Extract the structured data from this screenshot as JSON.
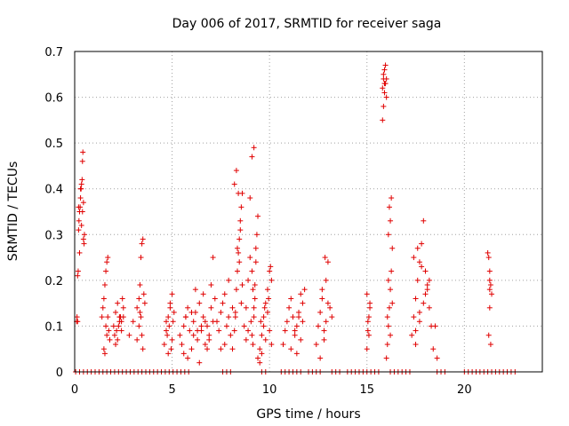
{
  "chart_data": {
    "type": "scatter",
    "title": "Day 006 of 2017, SRMTID for receiver saga",
    "xlabel": "GPS time / hours",
    "ylabel": "SRMTID / TECUs",
    "xlim": [
      0,
      24
    ],
    "ylim": [
      0,
      0.7
    ],
    "xticks": [
      0,
      5,
      10,
      15,
      20
    ],
    "xtick_labels": [
      "0",
      "5",
      "10",
      "15",
      "20"
    ],
    "yticks": [
      0,
      0.1,
      0.2,
      0.3,
      0.4,
      0.5,
      0.6,
      0.7
    ],
    "ytick_labels": [
      "0",
      "0.1",
      "0.2",
      "0.3",
      "0.4",
      "0.5",
      "0.6",
      "0.7"
    ],
    "grid": true,
    "marker": "plus",
    "color": "#e00000",
    "series": [
      {
        "name": "",
        "x": [
          0.1,
          0.12,
          0.15,
          0.18,
          0.2,
          0.22,
          0.25,
          0.28,
          0.3,
          0.33,
          0.35,
          0.38,
          0.4,
          0.42,
          0.45,
          0.48,
          0.5,
          0.2,
          0.3,
          0.35,
          0.25,
          0.15,
          0.4,
          0.45,
          1.4,
          1.45,
          1.5,
          1.55,
          1.6,
          1.65,
          1.7,
          1.75,
          1.8,
          1.5,
          1.6,
          1.7,
          1.55,
          1.65,
          2.0,
          2.1,
          2.2,
          2.3,
          2.4,
          2.5,
          2.05,
          2.15,
          2.25,
          2.35,
          2.45,
          2.2,
          2.3,
          2.1,
          2.4,
          2.5,
          2.8,
          3.0,
          3.2,
          3.3,
          3.35,
          3.4,
          3.45,
          3.5,
          3.55,
          3.4,
          3.45,
          3.5,
          3.3,
          3.35,
          3.6,
          3.2,
          4.6,
          4.7,
          4.8,
          4.9,
          5.0,
          5.1,
          4.75,
          4.85,
          4.95,
          5.05,
          4.8,
          4.9,
          5.0,
          4.7,
          5.4,
          5.5,
          5.6,
          5.7,
          5.8,
          5.9,
          6.0,
          6.1,
          6.2,
          6.3,
          6.4,
          6.5,
          6.6,
          6.7,
          6.8,
          6.9,
          7.0,
          7.1,
          7.2,
          5.6,
          5.8,
          6.0,
          6.2,
          6.4,
          6.6,
          6.8,
          7.0,
          5.7,
          6.1,
          6.5,
          6.9,
          7.3,
          7.4,
          7.5,
          7.6,
          7.7,
          7.8,
          7.9,
          8.0,
          8.1,
          7.5,
          7.7,
          7.9,
          6.3,
          6.7,
          7.1,
          8.1,
          8.2,
          8.25,
          8.3,
          8.35,
          8.4,
          8.45,
          8.5,
          8.55,
          8.6,
          8.2,
          8.3,
          8.4,
          8.5,
          8.35,
          8.45,
          8.25,
          8.55,
          8.6,
          8.7,
          8.8,
          8.9,
          9.0,
          9.1,
          9.15,
          9.2,
          9.25,
          9.3,
          9.35,
          9.4,
          9.0,
          9.1,
          9.2,
          9.3,
          9.1,
          9.05,
          9.15,
          9.2,
          9.25,
          8.8,
          8.9,
          9.4,
          9.5,
          9.6,
          9.7,
          9.8,
          9.9,
          10.0,
          10.1,
          9.5,
          9.6,
          9.7,
          9.8,
          9.9,
          10.0,
          10.1,
          10.05,
          9.55,
          9.75,
          9.95,
          10.7,
          10.8,
          10.9,
          11.0,
          11.1,
          11.2,
          11.3,
          11.4,
          11.5,
          11.6,
          11.7,
          11.8,
          11.1,
          11.3,
          11.5,
          11.7,
          11.4,
          11.6,
          12.4,
          12.5,
          12.6,
          12.7,
          12.8,
          12.9,
          13.0,
          13.1,
          13.2,
          12.6,
          12.8,
          12.9,
          13.0,
          12.7,
          12.85,
          15.0,
          15.05,
          15.1,
          15.15,
          15.0,
          15.1,
          15.05,
          15.15,
          15.8,
          15.85,
          15.9,
          15.95,
          16.0,
          15.85,
          15.9,
          15.95,
          15.8,
          16.0,
          15.9,
          15.85,
          16.0,
          16.05,
          16.1,
          16.15,
          16.2,
          16.25,
          16.3,
          16.1,
          16.2,
          16.15,
          16.25,
          16.05,
          16.2,
          16.3,
          16.1,
          17.3,
          17.4,
          17.5,
          17.6,
          17.7,
          17.8,
          17.9,
          18.0,
          18.1,
          18.2,
          18.3,
          17.5,
          17.7,
          17.9,
          18.1,
          17.4,
          17.6,
          17.8,
          18.0,
          17.5,
          17.7,
          18.2,
          18.4,
          18.6,
          18.5,
          21.2,
          21.25,
          21.3,
          21.35,
          21.4,
          21.3,
          21.25,
          21.35,
          21.3,
          21.3,
          0.05,
          0.25,
          0.45,
          0.65,
          0.85,
          1.05,
          1.25,
          1.45,
          1.65,
          1.85,
          2.05,
          2.25,
          2.45,
          2.65,
          2.85,
          3.05,
          3.25,
          3.45,
          3.65,
          3.85,
          4.05,
          4.25,
          4.45,
          4.65,
          4.85,
          5.05,
          5.25,
          5.45,
          5.65,
          5.85,
          7.6,
          7.8,
          8.0,
          9.6,
          9.8,
          10.6,
          10.8,
          11.0,
          11.2,
          11.4,
          11.6,
          12.0,
          12.2,
          12.4,
          12.6,
          13.2,
          13.4,
          13.6,
          14.0,
          14.2,
          14.4,
          14.6,
          14.8,
          15.0,
          15.2,
          15.4,
          15.6,
          16.2,
          16.4,
          16.6,
          16.8,
          17.0,
          17.2,
          18.6,
          18.8,
          19.0,
          20.0,
          20.2,
          20.4,
          20.6,
          20.8,
          21.0,
          21.2,
          21.4,
          21.6,
          21.8,
          22.0,
          22.2,
          22.4,
          22.6
        ],
        "y": [
          0.11,
          0.12,
          0.21,
          0.22,
          0.31,
          0.33,
          0.35,
          0.36,
          0.38,
          0.4,
          0.41,
          0.42,
          0.46,
          0.48,
          0.29,
          0.28,
          0.3,
          0.36,
          0.4,
          0.32,
          0.26,
          0.11,
          0.35,
          0.37,
          0.12,
          0.14,
          0.16,
          0.19,
          0.22,
          0.24,
          0.25,
          0.09,
          0.07,
          0.05,
          0.1,
          0.12,
          0.04,
          0.08,
          0.1,
          0.13,
          0.15,
          0.12,
          0.11,
          0.14,
          0.08,
          0.09,
          0.1,
          0.12,
          0.16,
          0.07,
          0.11,
          0.06,
          0.09,
          0.12,
          0.08,
          0.11,
          0.14,
          0.16,
          0.19,
          0.25,
          0.28,
          0.29,
          0.17,
          0.12,
          0.08,
          0.05,
          0.1,
          0.13,
          0.15,
          0.07,
          0.06,
          0.09,
          0.12,
          0.15,
          0.17,
          0.13,
          0.08,
          0.1,
          0.05,
          0.11,
          0.04,
          0.14,
          0.07,
          0.11,
          0.08,
          0.06,
          0.1,
          0.12,
          0.14,
          0.09,
          0.05,
          0.11,
          0.13,
          0.07,
          0.15,
          0.09,
          0.12,
          0.06,
          0.1,
          0.08,
          0.14,
          0.11,
          0.16,
          0.04,
          0.03,
          0.13,
          0.18,
          0.02,
          0.17,
          0.05,
          0.19,
          0.12,
          0.08,
          0.1,
          0.07,
          0.11,
          0.09,
          0.13,
          0.15,
          0.06,
          0.1,
          0.12,
          0.08,
          0.14,
          0.05,
          0.17,
          0.2,
          0.09,
          0.11,
          0.25,
          0.05,
          0.09,
          0.13,
          0.18,
          0.22,
          0.26,
          0.29,
          0.33,
          0.36,
          0.39,
          0.41,
          0.44,
          0.39,
          0.31,
          0.27,
          0.24,
          0.12,
          0.15,
          0.19,
          0.1,
          0.14,
          0.2,
          0.25,
          0.22,
          0.18,
          0.12,
          0.16,
          0.24,
          0.3,
          0.34,
          0.38,
          0.47,
          0.49,
          0.27,
          0.08,
          0.11,
          0.06,
          0.14,
          0.19,
          0.07,
          0.09,
          0.03,
          0.05,
          0.08,
          0.12,
          0.15,
          0.18,
          0.22,
          0.2,
          0.02,
          0.04,
          0.1,
          0.07,
          0.13,
          0.09,
          0.06,
          0.23,
          0.11,
          0.14,
          0.16,
          0.06,
          0.09,
          0.11,
          0.14,
          0.16,
          0.12,
          0.08,
          0.1,
          0.13,
          0.07,
          0.15,
          0.18,
          0.05,
          0.09,
          0.12,
          0.11,
          0.04,
          0.17,
          0.06,
          0.1,
          0.13,
          0.16,
          0.09,
          0.2,
          0.24,
          0.14,
          0.12,
          0.03,
          0.07,
          0.11,
          0.15,
          0.18,
          0.25,
          0.05,
          0.09,
          0.12,
          0.15,
          0.17,
          0.08,
          0.11,
          0.14,
          0.55,
          0.58,
          0.61,
          0.63,
          0.64,
          0.65,
          0.66,
          0.67,
          0.62,
          0.6,
          0.63,
          0.64,
          0.03,
          0.06,
          0.1,
          0.14,
          0.18,
          0.22,
          0.27,
          0.3,
          0.33,
          0.36,
          0.38,
          0.12,
          0.08,
          0.15,
          0.2,
          0.08,
          0.12,
          0.16,
          0.2,
          0.24,
          0.28,
          0.33,
          0.22,
          0.18,
          0.14,
          0.1,
          0.06,
          0.11,
          0.15,
          0.19,
          0.25,
          0.27,
          0.23,
          0.17,
          0.09,
          0.13,
          0.2,
          0.05,
          0.03,
          0.1,
          0.26,
          0.25,
          0.22,
          0.19,
          0.17,
          0.14,
          0.08,
          0.06,
          0.18,
          0.2,
          0,
          0,
          0,
          0,
          0,
          0,
          0,
          0,
          0,
          0,
          0,
          0,
          0,
          0,
          0,
          0,
          0,
          0,
          0,
          0,
          0,
          0,
          0,
          0,
          0,
          0,
          0,
          0,
          0,
          0,
          0,
          0,
          0,
          0,
          0,
          0,
          0,
          0,
          0,
          0,
          0,
          0,
          0,
          0,
          0,
          0,
          0,
          0,
          0,
          0,
          0,
          0,
          0,
          0,
          0,
          0,
          0,
          0,
          0,
          0,
          0,
          0,
          0,
          0,
          0,
          0,
          0,
          0,
          0,
          0,
          0,
          0,
          0,
          0,
          0,
          0,
          0,
          0,
          0,
          0
        ]
      }
    ]
  }
}
